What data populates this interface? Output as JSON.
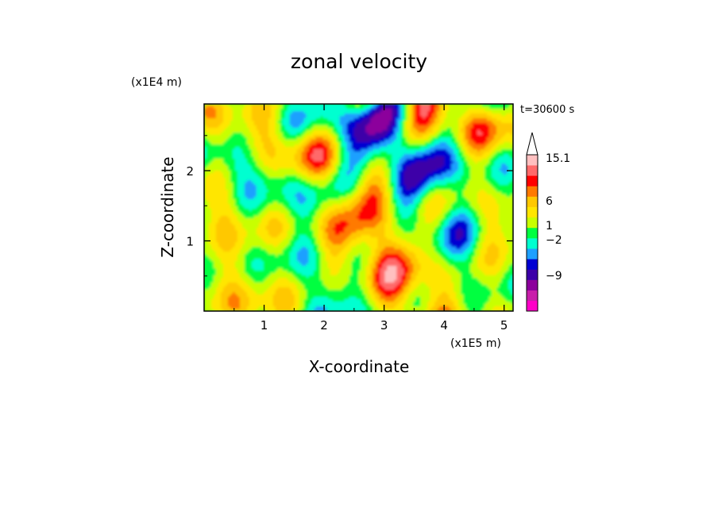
{
  "chart_data": {
    "type": "heatmap",
    "title": "zonal velocity",
    "xlabel": "X-coordinate",
    "ylabel": "Z-coordinate",
    "x_unit": "(x1E5 m)",
    "y_unit": "(x1E4 m)",
    "time_label": "t=30600 s",
    "xlim": [
      0,
      5.15
    ],
    "ylim": [
      0,
      2.95
    ],
    "x_ticks": [
      1,
      2,
      3,
      4,
      5
    ],
    "y_ticks": [
      1,
      2
    ],
    "x_tick_labels": [
      "1",
      "2",
      "3",
      "4",
      "5"
    ],
    "y_tick_labels": [
      "1",
      "2"
    ],
    "colorbar": {
      "colors": [
        "#ff00c8",
        "#c81eaa",
        "#8c009c",
        "#3c00a8",
        "#0000d2",
        "#1ea0ff",
        "#00ffd0",
        "#00ff40",
        "#c8ff00",
        "#ffe600",
        "#ffc800",
        "#ff7a00",
        "#ff0000",
        "#ff6a6a",
        "#ffc0c0"
      ],
      "labels": [
        {
          "text": "15.1",
          "level": 15.1
        },
        {
          "text": "6",
          "level": 6
        },
        {
          "text": "1",
          "level": 1
        },
        {
          "text": "−2",
          "level": -2
        },
        {
          "text": "−9",
          "level": -9
        }
      ],
      "extend": "max"
    }
  }
}
